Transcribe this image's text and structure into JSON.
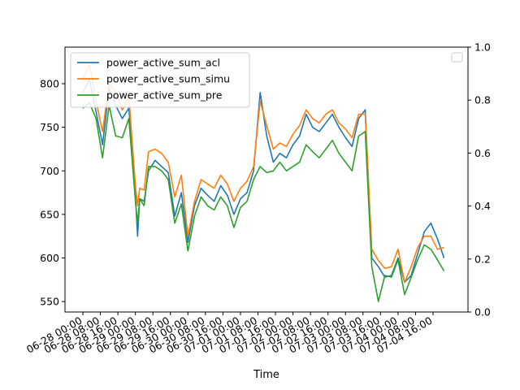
{
  "chart_data": {
    "type": "line",
    "xlabel": "Time",
    "ylabel": "",
    "ylim": [
      538,
      842
    ],
    "y_ticks": [
      550,
      600,
      650,
      700,
      750,
      800
    ],
    "secondary_ylim": [
      0.0,
      1.0
    ],
    "secondary_y_ticks": [
      "0.0",
      "0.2",
      "0.4",
      "0.6",
      "0.8",
      "1.0"
    ],
    "x_tick_labels": [
      "06-28 00:00",
      "06-28 08:00",
      "06-28 16:00",
      "06-29 00:00",
      "06-29 08:00",
      "06-29 16:00",
      "06-30 00:00",
      "06-30 08:00",
      "06-30 16:00",
      "07-01 00:00",
      "07-01 08:00",
      "07-01 16:00",
      "07-02 00:00",
      "07-02 08:00",
      "07-02 16:00",
      "07-03 00:00",
      "07-03 08:00",
      "07-03 16:00",
      "07-04 00:00",
      "07-04 08:00",
      "07-04 16:00"
    ],
    "legend_position": "upper-left",
    "secondary_legend": "empty box, upper-right",
    "grid": false,
    "x": [
      "06-28 00:00",
      "06-28 03:00",
      "06-28 06:00",
      "06-28 09:00",
      "06-28 12:00",
      "06-28 15:00",
      "06-28 18:00",
      "06-28 21:00",
      "06-29 00:00",
      "06-29 01:00",
      "06-29 02:00",
      "06-29 04:00",
      "06-29 06:00",
      "06-29 09:00",
      "06-29 12:00",
      "06-29 15:00",
      "06-29 18:00",
      "06-29 21:00",
      "06-30 00:00",
      "06-30 03:00",
      "06-30 06:00",
      "06-30 09:00",
      "06-30 12:00",
      "06-30 15:00",
      "06-30 18:00",
      "06-30 21:00",
      "07-01 00:00",
      "07-01 03:00",
      "07-01 06:00",
      "07-01 09:00",
      "07-01 12:00",
      "07-01 15:00",
      "07-01 18:00",
      "07-01 21:00",
      "07-02 00:00",
      "07-02 03:00",
      "07-02 06:00",
      "07-02 09:00",
      "07-02 12:00",
      "07-02 15:00",
      "07-02 18:00",
      "07-02 21:00",
      "07-03 00:00",
      "07-03 03:00",
      "07-03 06:00",
      "07-03 09:00",
      "07-03 12:00",
      "07-03 15:00",
      "07-03 18:00",
      "07-03 21:00",
      "07-04 00:00",
      "07-04 03:00",
      "07-04 06:00",
      "07-04 09:00",
      "07-04 12:00",
      "07-04 15:00",
      "07-04 18:00",
      "07-04 21:00"
    ],
    "series": [
      {
        "name": "power_active_sum_acl",
        "color": "#1f77b4",
        "values": [
          790,
          805,
          768,
          730,
          795,
          775,
          760,
          772,
          670,
          625,
          668,
          665,
          700,
          712,
          705,
          698,
          648,
          675,
          618,
          660,
          680,
          672,
          665,
          683,
          672,
          650,
          668,
          675,
          700,
          790,
          740,
          710,
          720,
          715,
          730,
          740,
          765,
          750,
          745,
          755,
          765,
          750,
          738,
          728,
          760,
          770,
          600,
          590,
          578,
          580,
          600,
          572,
          580,
          605,
          630,
          640,
          622,
          600
        ]
      },
      {
        "name": "power_active_sum_simu",
        "color": "#ff7f0e",
        "values": [
          805,
          822,
          780,
          745,
          800,
          790,
          770,
          785,
          683,
          660,
          680,
          678,
          722,
          725,
          720,
          710,
          670,
          695,
          625,
          665,
          690,
          685,
          680,
          695,
          685,
          665,
          680,
          688,
          705,
          780,
          752,
          725,
          732,
          728,
          742,
          752,
          770,
          760,
          755,
          765,
          770,
          755,
          748,
          738,
          765,
          765,
          610,
          597,
          588,
          590,
          610,
          572,
          590,
          612,
          625,
          625,
          610,
          612
        ]
      },
      {
        "name": "power_active_sum_pre",
        "color": "#2ca02c",
        "values": [
          772,
          778,
          760,
          715,
          775,
          740,
          738,
          760,
          665,
          640,
          668,
          660,
          705,
          705,
          700,
          690,
          640,
          662,
          608,
          648,
          670,
          660,
          655,
          670,
          660,
          635,
          658,
          665,
          690,
          705,
          698,
          700,
          710,
          700,
          705,
          710,
          730,
          722,
          715,
          725,
          735,
          720,
          710,
          700,
          740,
          745,
          590,
          550,
          580,
          578,
          598,
          558,
          578,
          598,
          615,
          610,
          598,
          585
        ]
      }
    ]
  }
}
